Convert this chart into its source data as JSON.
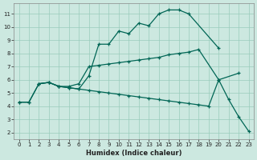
{
  "title": "",
  "xlabel": "Humidex (Indice chaleur)",
  "bg_color": "#cce8e0",
  "grid_color": "#99ccbb",
  "line_color": "#006655",
  "xlim": [
    -0.5,
    23.5
  ],
  "ylim": [
    1.5,
    11.8
  ],
  "xticks": [
    0,
    1,
    2,
    3,
    4,
    5,
    6,
    7,
    8,
    9,
    10,
    11,
    12,
    13,
    14,
    15,
    16,
    17,
    18,
    19,
    20,
    21,
    22,
    23
  ],
  "yticks": [
    2,
    3,
    4,
    5,
    6,
    7,
    8,
    9,
    10,
    11
  ],
  "line1_x": [
    0,
    1,
    2,
    3,
    4,
    5,
    6,
    7,
    8,
    9,
    10,
    11,
    12,
    13,
    14,
    15,
    16,
    17,
    20
  ],
  "line1_y": [
    4.3,
    4.3,
    5.7,
    5.8,
    5.5,
    5.4,
    5.3,
    6.3,
    8.7,
    8.7,
    9.7,
    9.5,
    10.3,
    10.1,
    11.0,
    11.3,
    11.3,
    11.0,
    8.4
  ],
  "line2_x": [
    2,
    3,
    4,
    5,
    6,
    7,
    8,
    9,
    10,
    11,
    12,
    13,
    14,
    15,
    16,
    17,
    18,
    20,
    22
  ],
  "line2_y": [
    5.7,
    5.8,
    5.5,
    5.5,
    5.7,
    7.0,
    7.1,
    7.2,
    7.3,
    7.4,
    7.5,
    7.6,
    7.7,
    7.9,
    8.0,
    8.1,
    8.3,
    6.0,
    6.5
  ],
  "line3_x": [
    0,
    1,
    2,
    3,
    4,
    5,
    6,
    7,
    8,
    9,
    10,
    11,
    12,
    13,
    14,
    15,
    16,
    17,
    18,
    19,
    20,
    21,
    22,
    23
  ],
  "line3_y": [
    4.3,
    4.3,
    5.7,
    5.8,
    5.5,
    5.4,
    5.3,
    5.2,
    5.1,
    5.0,
    4.9,
    4.8,
    4.7,
    4.6,
    4.5,
    4.4,
    4.3,
    4.2,
    4.1,
    4.0,
    6.0,
    4.5,
    3.2,
    2.1
  ]
}
